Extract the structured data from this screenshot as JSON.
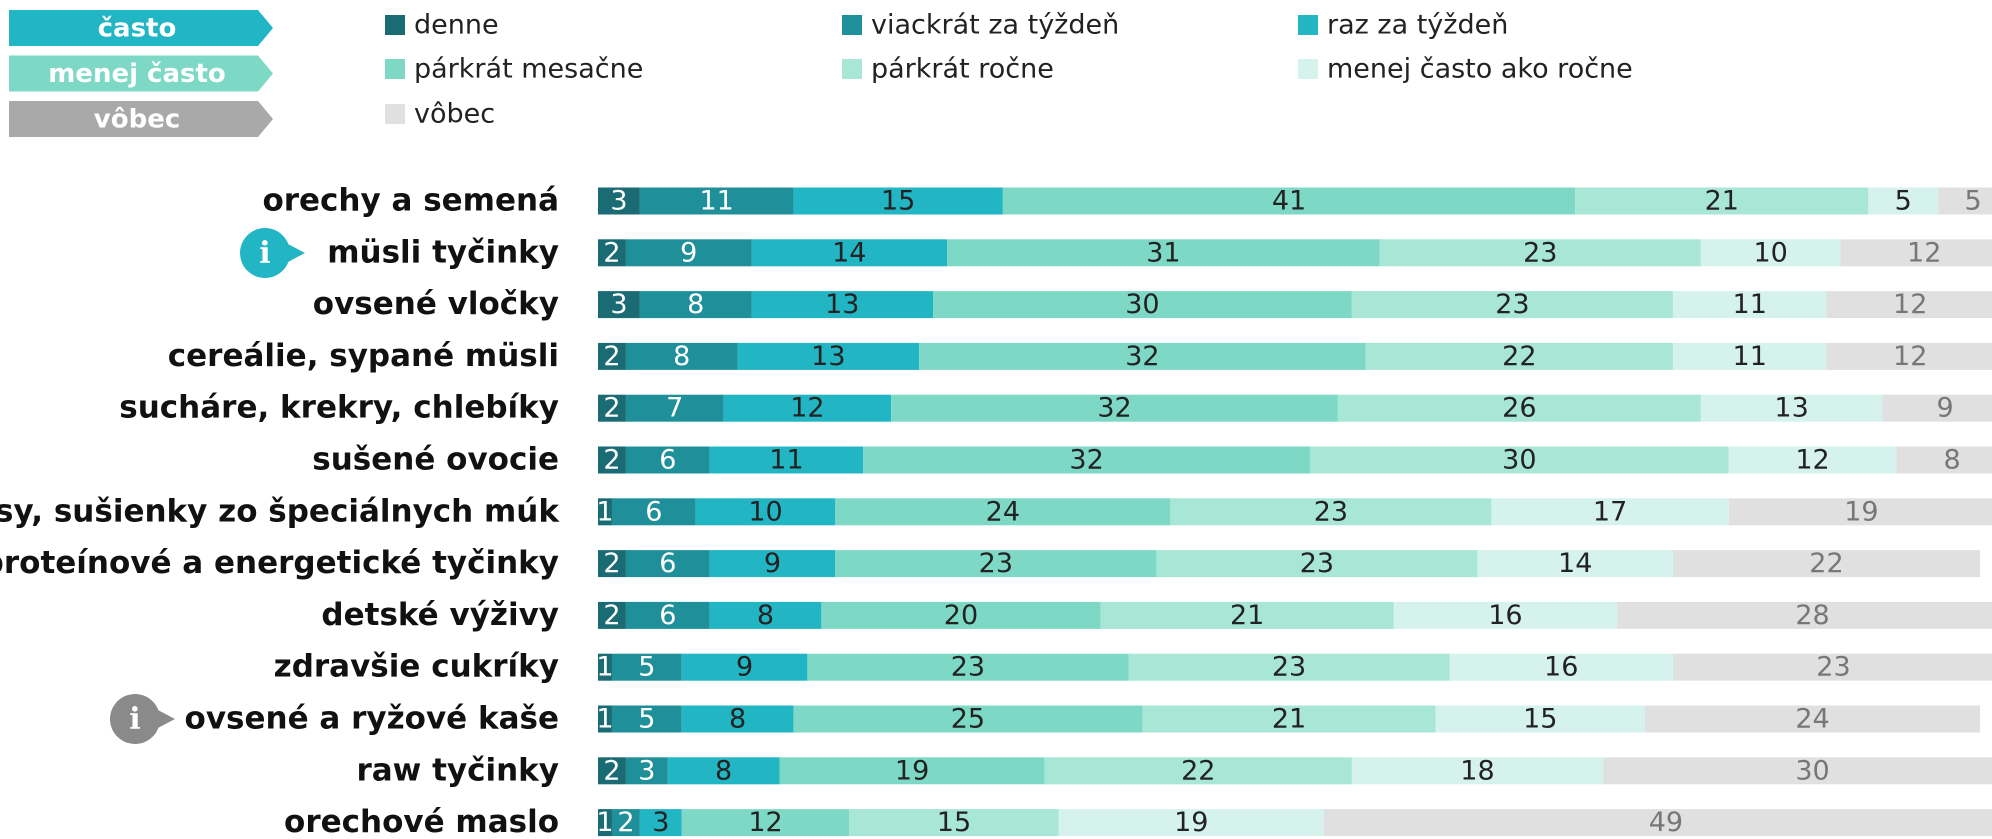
{
  "chart_data": {
    "type": "bar",
    "orientation": "horizontal",
    "stacked": true,
    "groups": [
      {
        "name": "často",
        "color": "#22b5c4"
      },
      {
        "name": "menej často",
        "color": "#7dd9c6"
      },
      {
        "name": "vôbec",
        "color": "#a9a9a9"
      }
    ],
    "categories": [
      "orechy a semená",
      "müsli tyčinky",
      "ovsené vločky",
      "cereálie, sypané müsli",
      "sucháre, krekry, chlebíky",
      "sušené ovocie",
      "keksy, sušienky zo špeciálnych múk",
      "proteínové a energetické tyčinky",
      "detské výživy",
      "zdravšie cukríky",
      "ovsené a ryžové kaše",
      "raw tyčinky",
      "orechové maslo"
    ],
    "series": [
      {
        "name": "denne",
        "color": "#1a6b73",
        "label_color": "#ffffff",
        "values": [
          3,
          2,
          3,
          2,
          2,
          2,
          1,
          2,
          2,
          1,
          1,
          2,
          1
        ]
      },
      {
        "name": "viackrát za týždeň",
        "color": "#1f8f9a",
        "label_color": "#ffffff",
        "values": [
          11,
          9,
          8,
          8,
          7,
          6,
          6,
          6,
          6,
          5,
          5,
          3,
          2
        ]
      },
      {
        "name": "raz za týždeň",
        "color": "#22b5c4",
        "label_color": "#222222",
        "values": [
          15,
          14,
          13,
          13,
          12,
          11,
          10,
          9,
          8,
          9,
          8,
          8,
          3
        ]
      },
      {
        "name": "párkrát mesačne",
        "color": "#7dd9c6",
        "label_color": "#222222",
        "values": [
          41,
          31,
          30,
          32,
          32,
          32,
          24,
          23,
          20,
          23,
          25,
          19,
          12
        ]
      },
      {
        "name": "párkrát ročne",
        "color": "#a8e6d6",
        "label_color": "#222222",
        "values": [
          21,
          23,
          23,
          22,
          26,
          30,
          23,
          23,
          21,
          23,
          21,
          22,
          15
        ]
      },
      {
        "name": "menej často ako ročne",
        "color": "#d5f3ec",
        "label_color": "#222222",
        "values": [
          5,
          10,
          11,
          11,
          13,
          12,
          17,
          14,
          16,
          16,
          15,
          18,
          19
        ]
      },
      {
        "name": "vôbec",
        "color": "#e0e0e0",
        "label_color": "#777777",
        "values": [
          5,
          12,
          12,
          12,
          9,
          8,
          19,
          22,
          28,
          23,
          24,
          30,
          49
        ]
      }
    ],
    "xlim": [
      0,
      100
    ]
  }
}
